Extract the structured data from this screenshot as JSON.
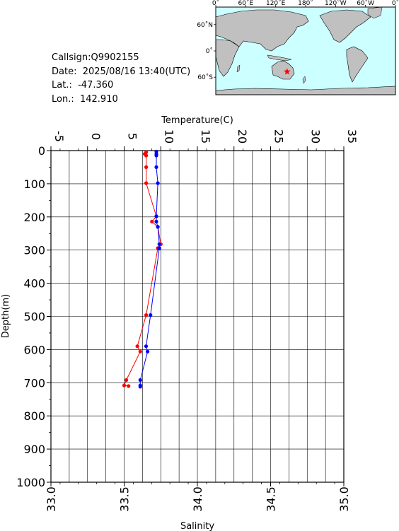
{
  "info": {
    "callsign": "Callsign:Q9902155",
    "date": "Date:  2025/08/16 13:40(UTC)",
    "lat": "Lat.:  -47.360",
    "lon": "Lon.:  142.910"
  },
  "map": {
    "top_labels": [
      "0˚",
      "60˚E",
      "120˚E",
      "180˚",
      "120˚W",
      "60˚W",
      "0˚"
    ],
    "left_labels": [
      "60˚N",
      "0˚",
      "60˚S"
    ],
    "ocean_color": "#ccffff",
    "land_color": "#c0c0c0",
    "marker_icon": "star",
    "marker_color": "#ff0000",
    "marker": {
      "lon": 142.91,
      "lat": -47.36
    }
  },
  "chart_data": {
    "type": "line",
    "title": "",
    "xlabel_top": "Temperature(C)",
    "xlabel_bottom": "Salinity",
    "ylabel": "Depth(m)",
    "y_inverted": true,
    "ylim": [
      0,
      1000
    ],
    "yticks": [
      "0",
      "100",
      "200",
      "300",
      "400",
      "500",
      "600",
      "700",
      "800",
      "900",
      "1000"
    ],
    "temperature_lim": [
      -5,
      35
    ],
    "temperature_ticks": [
      "-5",
      "0",
      "5",
      "10",
      "15",
      "20",
      "25",
      "30",
      "35"
    ],
    "salinity_lim": [
      33.0,
      35.0
    ],
    "salinity_ticks": [
      "33.0",
      "33.5",
      "34.0",
      "34.5",
      "35.0"
    ],
    "grid": true,
    "series": [
      {
        "color": "#ff0000",
        "axis": "temperature",
        "points": [
          [
            8.0,
            5
          ],
          [
            7.8,
            10
          ],
          [
            8.0,
            15
          ],
          [
            8.0,
            50
          ],
          [
            8.0,
            98
          ],
          [
            9.4,
            198
          ],
          [
            8.8,
            214
          ],
          [
            9.6,
            230
          ],
          [
            10.0,
            282
          ],
          [
            9.6,
            294
          ],
          [
            8.0,
            496
          ],
          [
            6.8,
            590
          ],
          [
            7.2,
            606
          ],
          [
            5.3,
            692
          ],
          [
            5.0,
            708
          ],
          [
            5.6,
            710
          ]
        ]
      },
      {
        "color": "#0000ff",
        "axis": "salinity",
        "points": [
          [
            33.72,
            3
          ],
          [
            33.72,
            10
          ],
          [
            33.72,
            15
          ],
          [
            33.72,
            50
          ],
          [
            33.73,
            98
          ],
          [
            33.72,
            198
          ],
          [
            33.72,
            214
          ],
          [
            33.73,
            230
          ],
          [
            33.74,
            282
          ],
          [
            33.74,
            294
          ],
          [
            33.68,
            496
          ],
          [
            33.65,
            590
          ],
          [
            33.66,
            606
          ],
          [
            33.61,
            692
          ],
          [
            33.61,
            708
          ],
          [
            33.61,
            712
          ]
        ]
      }
    ]
  }
}
